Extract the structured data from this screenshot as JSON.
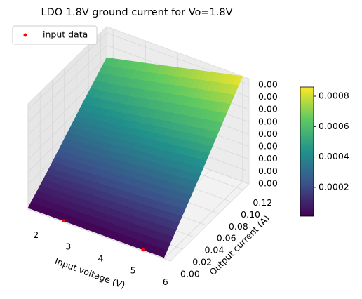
{
  "chart_data": {
    "type": "surface3d",
    "title": "LDO 1.8V ground current for Vo=1.8V",
    "xlabel": "Input voltage (V)",
    "ylabel": "Output current (A)",
    "colormap": "viridis",
    "x": [
      1.8,
      3,
      4,
      5,
      6
    ],
    "y": [
      0,
      0.03,
      0.06,
      0.09,
      0.13
    ],
    "z": [
      [
        1e-05,
        1e-05,
        1e-05,
        1e-05,
        1e-05
      ],
      [
        0.00014,
        0.000155,
        0.00017,
        0.00018,
        0.0002
      ],
      [
        0.00028,
        0.00031,
        0.00034,
        0.00036,
        0.00039
      ],
      [
        0.00042,
        0.00046,
        0.00051,
        0.00055,
        0.00059
      ],
      [
        0.0006,
        0.00067,
        0.00073,
        0.00079,
        0.00085
      ]
    ],
    "scatter": {
      "name": "input data",
      "color": "#ff0000",
      "x": [
        2.9,
        5.35
      ],
      "y": [
        0,
        0
      ],
      "z": [
        1e-05,
        1e-05
      ]
    },
    "xlim": [
      1.8,
      6.2
    ],
    "ylim": [
      0,
      0.13
    ],
    "zlim": [
      0,
      0.00085
    ],
    "xticks": [
      2,
      3,
      4,
      5,
      6
    ],
    "yticks": [
      {
        "value": 0,
        "label": "0.00"
      },
      {
        "value": 0.02,
        "label": "0.02"
      },
      {
        "value": 0.04,
        "label": "0.04"
      },
      {
        "value": 0.06,
        "label": "0.06"
      },
      {
        "value": 0.08,
        "label": "0.08"
      },
      {
        "value": 0.1,
        "label": "0.10"
      },
      {
        "value": 0.12,
        "label": "0.12"
      }
    ],
    "zticks": [
      {
        "value": 0,
        "label": "0.00"
      },
      {
        "value": 0.0001,
        "label": "0.00"
      },
      {
        "value": 0.0002,
        "label": "0.00"
      },
      {
        "value": 0.0003,
        "label": "0.00"
      },
      {
        "value": 0.0004,
        "label": "0.00"
      },
      {
        "value": 0.0005,
        "label": "0.00"
      },
      {
        "value": 0.0006,
        "label": "0.00"
      },
      {
        "value": 0.0007,
        "label": "0.00"
      },
      {
        "value": 0.0008,
        "label": "0.00"
      }
    ],
    "clim": [
      1e-05,
      0.00086
    ],
    "cticks": [
      0.0002,
      0.0004,
      0.0006,
      0.0008
    ],
    "grid": true,
    "legend": "upper left"
  }
}
